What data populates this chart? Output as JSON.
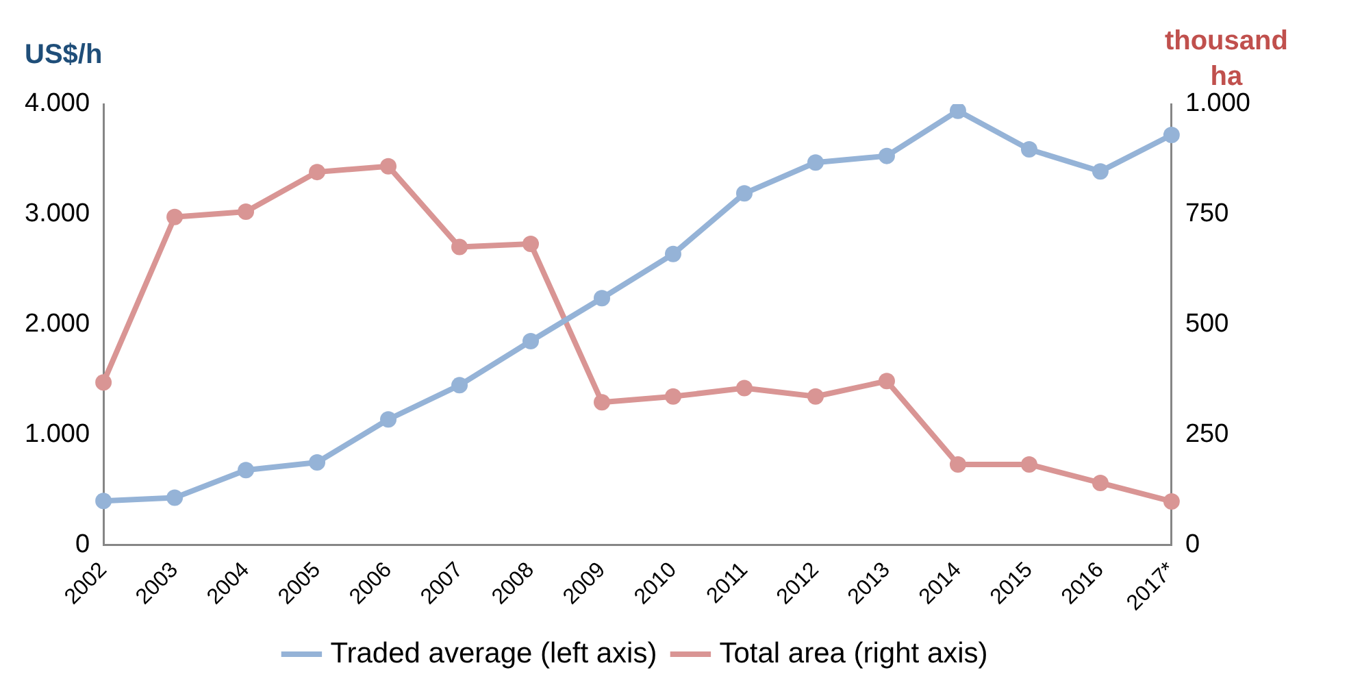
{
  "chart_data": {
    "type": "line",
    "ylabel": "US$/h",
    "y2label": "thousand ha",
    "categories": [
      "2002",
      "2003",
      "2004",
      "2005",
      "2006",
      "2007",
      "2008",
      "2009",
      "2010",
      "2011",
      "2012",
      "2013",
      "2014",
      "2015",
      "2016",
      "2017*"
    ],
    "series": [
      {
        "name": "Traded average (left axis)",
        "color": "#95b3d7",
        "values": [
          400,
          430,
          680,
          750,
          1140,
          1450,
          1850,
          2240,
          2640,
          3190,
          3470,
          3530,
          3940,
          3590,
          3390,
          3720
        ]
      },
      {
        "name": "Total area (right axis)",
        "color": "#d99594",
        "axis": "y2",
        "values": [
          369,
          744,
          756,
          846,
          859,
          676,
          683,
          324,
          337,
          356,
          337,
          372,
          183,
          183,
          141,
          99
        ]
      }
    ],
    "ylim": [
      0,
      4000
    ],
    "yticks": [
      0,
      {
        "value": 1000,
        "label": "1.000"
      },
      {
        "value": 2000,
        "label": "2.000"
      },
      {
        "value": 3000,
        "label": "3.000"
      },
      {
        "value": 4000,
        "label": "4.000"
      }
    ],
    "y2lim": [
      0,
      1000
    ],
    "y2ticks": [
      0,
      250,
      500,
      750,
      {
        "value": 1000,
        "label": "1.000"
      }
    ],
    "grid": false,
    "legend": "bottom",
    "marker": "circle",
    "line_style": "solid"
  }
}
